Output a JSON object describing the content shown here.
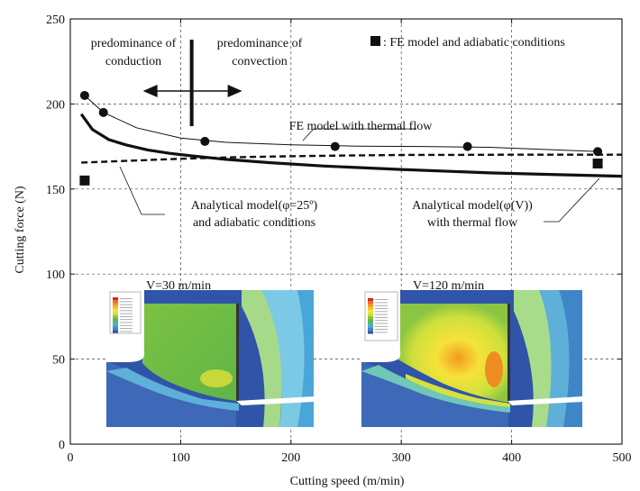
{
  "chart_data": {
    "type": "line",
    "xlabel": "Cutting speed (m/min)",
    "ylabel": "Cutting force (N)",
    "xlim": [
      0,
      500
    ],
    "ylim": [
      0,
      250
    ],
    "xticks": [
      0,
      100,
      200,
      300,
      400,
      500
    ],
    "yticks": [
      0,
      50,
      100,
      150,
      200,
      250
    ],
    "grid": "dashed",
    "series": [
      {
        "name": "FE model with thermal flow",
        "style": "thin-line-circle-markers",
        "markers": {
          "x": [
            13,
            30,
            122,
            240,
            360,
            478
          ],
          "y": [
            205,
            195,
            178,
            175,
            175,
            172
          ]
        },
        "curve": {
          "x": [
            13,
            30,
            60,
            100,
            140,
            200,
            260,
            320,
            380,
            440,
            480
          ],
          "y": [
            205,
            195,
            186,
            180,
            177.5,
            176,
            175.2,
            175,
            174.5,
            173,
            172
          ]
        }
      },
      {
        "name": "FE model and adiabatic conditions",
        "legend_text": ": FE model and adiabatic conditions",
        "style": "square-markers",
        "x": [
          13,
          478
        ],
        "y": [
          155,
          165
        ]
      },
      {
        "name": "Analytical model(φ(V)) with thermal flow",
        "style": "thick-line",
        "x": [
          10,
          20,
          35,
          50,
          70,
          90,
          110,
          140,
          180,
          230,
          300,
          380,
          450,
          500
        ],
        "y": [
          194,
          185,
          179,
          176,
          173,
          171,
          169.5,
          167.5,
          165.5,
          163.5,
          161.5,
          159.5,
          158.3,
          157.5
        ]
      },
      {
        "name": "Analytical model(φ=25°) and adiabatic conditions",
        "style": "dashed-line",
        "x": [
          10,
          50,
          100,
          150,
          200,
          250,
          300,
          350,
          400,
          450,
          500
        ],
        "y": [
          165.5,
          166.5,
          167.8,
          168.7,
          169.3,
          169.7,
          170,
          170.1,
          170.2,
          170.2,
          170.2
        ]
      }
    ],
    "annotations": {
      "conduction": [
        "predominance of",
        "conduction"
      ],
      "convection": [
        "predominance of",
        "convection"
      ],
      "fe_thermal": "FE model with thermal flow",
      "analytical_adiabatic": [
        "Analytical model(φ=25º)",
        "and adiabatic conditions"
      ],
      "analytical_thermal": [
        "Analytical model(φ(V))",
        "with thermal flow"
      ],
      "inset_left": "V=30 m/min",
      "inset_right": "V=120 m/min"
    },
    "boundary_speed": 110
  }
}
